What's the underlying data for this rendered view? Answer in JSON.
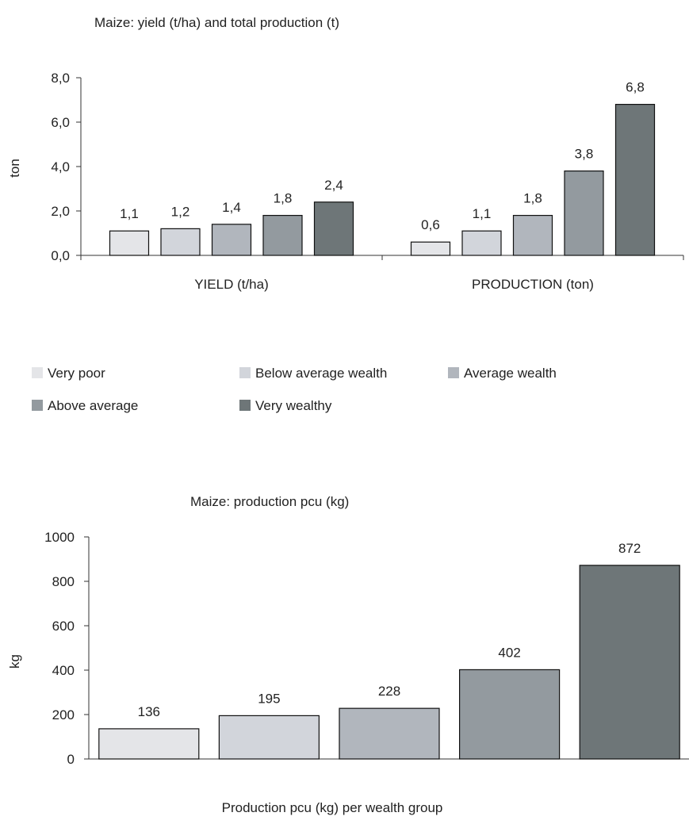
{
  "chart_data": [
    {
      "type": "bar",
      "title": "Maize: yield (t/ha) and total production (t)",
      "ylabel": "ton",
      "xlabel": "",
      "categories": [
        "YIELD (t/ha)",
        "PRODUCTION (ton)"
      ],
      "series": [
        {
          "name": "Very poor",
          "values": [
            1.1,
            0.6
          ],
          "labels": [
            "1,1",
            "0,6"
          ],
          "color": "#e4e5e8"
        },
        {
          "name": "Below average wealth",
          "values": [
            1.2,
            1.1
          ],
          "labels": [
            "1,2",
            "1,1"
          ],
          "color": "#d2d5db"
        },
        {
          "name": "Average wealth",
          "values": [
            1.4,
            1.8
          ],
          "labels": [
            "1,4",
            "1,8"
          ],
          "color": "#b1b6bd"
        },
        {
          "name": "Above average",
          "values": [
            1.8,
            3.8
          ],
          "labels": [
            "1,8",
            "3,8"
          ],
          "color": "#939a9f"
        },
        {
          "name": "Very wealthy",
          "values": [
            2.4,
            6.8
          ],
          "labels": [
            "2,4",
            "6,8"
          ],
          "color": "#6e7678"
        }
      ],
      "ylim": [
        0,
        8
      ],
      "yticks": [
        0,
        2,
        4,
        6,
        8
      ],
      "ytick_labels": [
        "0,0",
        "2,0",
        "4,0",
        "6,0",
        "8,0"
      ],
      "grid": false,
      "legend": "bottom"
    },
    {
      "type": "bar",
      "title": "Maize: production pcu (kg)",
      "ylabel": "kg",
      "xlabel": "Production pcu (kg) per wealth group",
      "categories": [
        "Very poor",
        "Below average wealth",
        "Average wealth",
        "Above average",
        "Very wealthy"
      ],
      "values": [
        136,
        195,
        228,
        402,
        872
      ],
      "labels": [
        "136",
        "195",
        "228",
        "402",
        "872"
      ],
      "colors": [
        "#e4e5e8",
        "#d2d5db",
        "#b1b6bd",
        "#939a9f",
        "#6e7678"
      ],
      "ylim": [
        0,
        1000
      ],
      "yticks": [
        0,
        200,
        400,
        600,
        800,
        1000
      ],
      "ytick_labels": [
        "0",
        "200",
        "400",
        "600",
        "800",
        "1000"
      ],
      "grid": false,
      "legend": "none"
    }
  ]
}
